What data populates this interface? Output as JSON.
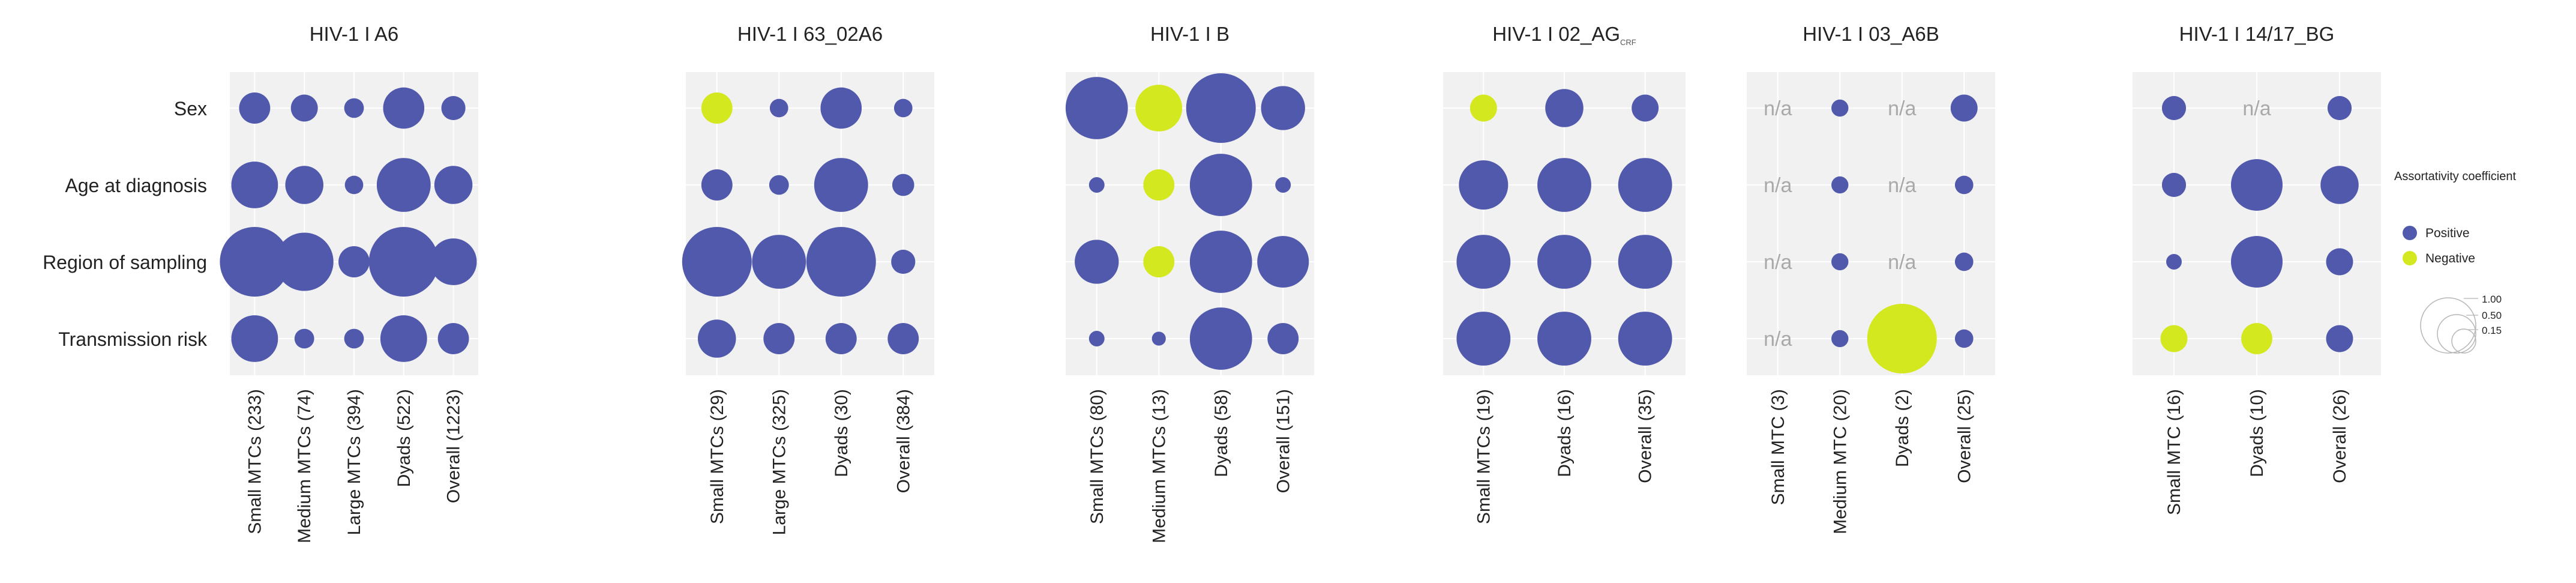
{
  "row_labels": [
    "Sex",
    "Age at diagnosis",
    "Region of sampling",
    "Transmission risk"
  ],
  "legend": {
    "title": "Assortativity coefficient",
    "positive_label": "Positive",
    "negative_label": "Negative",
    "size_labels": [
      "1.00",
      "0.50",
      "0.15"
    ]
  },
  "colors": {
    "positive": "#5159ad",
    "negative": "#d4e820",
    "na_text": "#a9a9a9",
    "panel_bg": "#f1f1f1"
  },
  "chart_data": [
    {
      "type": "bubble-matrix",
      "title": "HIV-1 I A6",
      "categories": [
        "Small MTCs (233)",
        "Medium MTCs (74)",
        "Large MTCs (394)",
        "Dyads (522)",
        "Overall (1223)"
      ],
      "rows": [
        "Sex",
        "Age at diagnosis",
        "Region of sampling",
        "Transmission risk"
      ],
      "values": [
        [
          0.2,
          0.15,
          0.08,
          0.35,
          0.12
        ],
        [
          0.45,
          0.3,
          0.07,
          0.6,
          0.3
        ],
        [
          1.0,
          0.7,
          0.2,
          1.0,
          0.45
        ],
        [
          0.45,
          0.08,
          0.08,
          0.45,
          0.2
        ]
      ],
      "sign": [
        [
          "+",
          "+",
          "+",
          "+",
          "+"
        ],
        [
          "+",
          "+",
          "+",
          "+",
          "+"
        ],
        [
          "+",
          "+",
          "+",
          "+",
          "+"
        ],
        [
          "+",
          "+",
          "+",
          "+",
          "+"
        ]
      ]
    },
    {
      "type": "bubble-matrix",
      "title": "HIV-1 I 63_02A6",
      "categories": [
        "Small MTCs (29)",
        "Large MTCs (325)",
        "Dyads (30)",
        "Overall (384)"
      ],
      "rows": [
        "Sex",
        "Age at diagnosis",
        "Region of sampling",
        "Transmission risk"
      ],
      "values": [
        [
          0.2,
          0.07,
          0.35,
          0.07
        ],
        [
          0.2,
          0.08,
          0.6,
          0.1
        ],
        [
          1.0,
          0.6,
          1.0,
          0.12
        ],
        [
          0.3,
          0.2,
          0.2,
          0.2
        ]
      ],
      "sign": [
        [
          "-",
          "+",
          "+",
          "+"
        ],
        [
          "+",
          "+",
          "+",
          "+"
        ],
        [
          "+",
          "+",
          "+",
          "+"
        ],
        [
          "+",
          "+",
          "+",
          "+"
        ]
      ]
    },
    {
      "type": "bubble-matrix",
      "title": "HIV-1 I B",
      "categories": [
        "Small MTCs (80)",
        "Medium MTCs (13)",
        "Dyads (58)",
        "Overall (151)"
      ],
      "rows": [
        "Sex",
        "Age at diagnosis",
        "Region of sampling",
        "Transmission risk"
      ],
      "values": [
        [
          0.8,
          0.45,
          1.0,
          0.4
        ],
        [
          0.05,
          0.2,
          0.8,
          0.05
        ],
        [
          0.4,
          0.2,
          0.8,
          0.55
        ],
        [
          0.05,
          0.04,
          0.8,
          0.2
        ]
      ],
      "sign": [
        [
          "+",
          "-",
          "+",
          "+"
        ],
        [
          "+",
          "-",
          "+",
          "+"
        ],
        [
          "+",
          "-",
          "+",
          "+"
        ],
        [
          "+",
          "+",
          "+",
          "+"
        ]
      ]
    },
    {
      "type": "bubble-matrix",
      "title": "HIV-1 I 02_AG",
      "title_sub": "CRF",
      "categories": [
        "Small MTCs (19)",
        "Dyads (16)",
        "Overall (35)"
      ],
      "rows": [
        "Sex",
        "Age at diagnosis",
        "Region of sampling",
        "Transmission risk"
      ],
      "values": [
        [
          0.15,
          0.3,
          0.15
        ],
        [
          0.5,
          0.6,
          0.6
        ],
        [
          0.6,
          0.6,
          0.6
        ],
        [
          0.6,
          0.6,
          0.6
        ]
      ],
      "sign": [
        [
          "-",
          "+",
          "+"
        ],
        [
          "+",
          "+",
          "+"
        ],
        [
          "+",
          "+",
          "+"
        ],
        [
          "+",
          "+",
          "+"
        ]
      ]
    },
    {
      "type": "bubble-matrix",
      "title": "HIV-1 I 03_A6B",
      "categories": [
        "Small MTC (3)",
        "Medium MTC (20)",
        "Dyads (2)",
        "Overall (25)"
      ],
      "rows": [
        "Sex",
        "Age at diagnosis",
        "Region of sampling",
        "Transmission risk"
      ],
      "values": [
        [
          null,
          0.06,
          null,
          0.15
        ],
        [
          null,
          0.06,
          null,
          0.07
        ],
        [
          null,
          0.06,
          null,
          0.07
        ],
        [
          null,
          0.06,
          1.0,
          0.07
        ]
      ],
      "sign": [
        [
          "n/a",
          "+",
          "n/a",
          "+"
        ],
        [
          "n/a",
          "+",
          "n/a",
          "+"
        ],
        [
          "n/a",
          "+",
          "n/a",
          "+"
        ],
        [
          "n/a",
          "+",
          "-",
          "+"
        ]
      ],
      "na_text": "n/a"
    },
    {
      "type": "bubble-matrix",
      "title": "HIV-1 I 14/17_BG",
      "categories": [
        "Small MTC (16)",
        "Dyads (10)",
        "Overall (26)"
      ],
      "rows": [
        "Sex",
        "Age at diagnosis",
        "Region of sampling",
        "Transmission risk"
      ],
      "values": [
        [
          0.12,
          null,
          0.12
        ],
        [
          0.12,
          0.55,
          0.3
        ],
        [
          0.05,
          0.55,
          0.15
        ],
        [
          0.15,
          0.2,
          0.15
        ]
      ],
      "sign": [
        [
          "+",
          "n/a",
          "+"
        ],
        [
          "+",
          "+",
          "+"
        ],
        [
          "+",
          "+",
          "+"
        ],
        [
          "-",
          "-",
          "+"
        ]
      ],
      "na_text": "n/a"
    }
  ]
}
